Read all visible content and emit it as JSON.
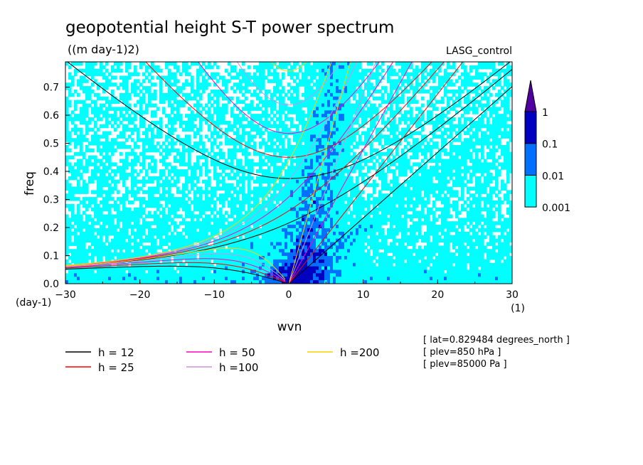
{
  "chart_data": {
    "type": "heatmap",
    "title": "geopotential height S-T power spectrum",
    "subtitle": "((m day-1)2)",
    "run_label": "LASG_control",
    "xlabel": "wvn",
    "x_unit": "(1)",
    "ylabel": "freq",
    "y_unit": "(day-1)",
    "xlim": [
      -30,
      30
    ],
    "ylim": [
      0,
      0.79
    ],
    "x_ticks": [
      -30,
      -20,
      -10,
      0,
      10,
      20,
      30
    ],
    "y_ticks": [
      0.0,
      0.1,
      0.2,
      0.3,
      0.4,
      0.5,
      0.6,
      0.7
    ],
    "colorbar": {
      "levels": [
        "0.001",
        "0.01",
        "0.1",
        "1"
      ],
      "colors": [
        "#00ffff",
        "#0070ff",
        "#0000c0",
        "#5000a0"
      ]
    },
    "dispersion_curves": [
      {
        "name": "h = 12",
        "h": 12,
        "color": "#000000"
      },
      {
        "name": "h = 25",
        "h": 25,
        "color": "#ff0000"
      },
      {
        "name": "h = 50",
        "h": 50,
        "color": "#ff00c0"
      },
      {
        "name": "h =100",
        "h": 100,
        "color": "#d090e0"
      },
      {
        "name": "h =200",
        "h": 200,
        "color": "#ffd000"
      }
    ],
    "annotations": [
      "[ lat=0.829484 degrees_north ]",
      "[ plev=850 hPa ]",
      "[ plev=85000 Pa ]"
    ]
  }
}
